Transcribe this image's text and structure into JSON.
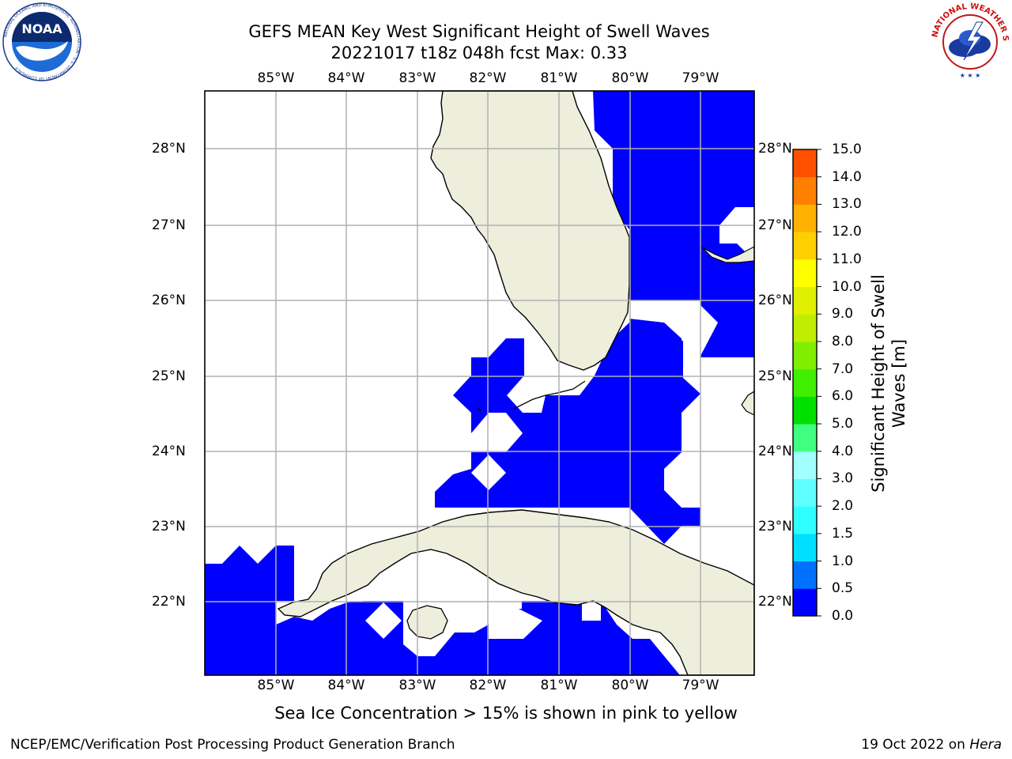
{
  "header": {
    "title_line1": "GEFS MEAN Key West Significant Height of Swell Waves",
    "title_line2": "20221017 t18z 048h fcst   Max: 0.33"
  },
  "logos": {
    "left": {
      "icon": "noaa-logo",
      "text": "NOAA",
      "ring_text": "NATIONAL OCEANIC AND ATMOSPHERIC ADMINISTRATION · U.S. DEPARTMENT OF COMMERCE"
    },
    "right": {
      "icon": "nws-logo",
      "ring_text": "NATIONAL WEATHER SERVICE"
    }
  },
  "map": {
    "region": "Key West / South Florida / Cuba",
    "longitude_labels": [
      "85°W",
      "84°W",
      "83°W",
      "82°W",
      "81°W",
      "80°W",
      "79°W"
    ],
    "latitude_labels": [
      "28°N",
      "27°N",
      "26°N",
      "25°N",
      "24°N",
      "23°N",
      "22°N"
    ],
    "colors": {
      "land": "#eeeedc",
      "swell_lowest": "#0000ff",
      "grid": "#b0b0b0",
      "coast": "#000000"
    }
  },
  "colorbar": {
    "label": "Significant Height of Swell Waves [m]",
    "ticks": [
      "0.0",
      "0.5",
      "1.0",
      "1.5",
      "2.0",
      "3.0",
      "4.0",
      "5.0",
      "6.0",
      "7.0",
      "8.0",
      "9.0",
      "10.0",
      "11.0",
      "12.0",
      "13.0",
      "14.0",
      "15.0"
    ],
    "colors": [
      "#0000ff",
      "#0070ff",
      "#00dfff",
      "#30ffff",
      "#60ffff",
      "#a0ffff",
      "#40ff80",
      "#00e000",
      "#40ee00",
      "#80ee00",
      "#c0ee00",
      "#e0f000",
      "#ffff00",
      "#ffd000",
      "#ffb000",
      "#ff8000",
      "#ff5000",
      "#ff2000",
      "#ff0000"
    ]
  },
  "notes": {
    "ice": "Sea Ice Concentration > 15% is shown in pink to yellow"
  },
  "footer": {
    "left": "NCEP/EMC/Verification Post Processing Product Generation Branch",
    "right_prefix": "19 Oct 2022 on ",
    "right_host": "Hera"
  }
}
